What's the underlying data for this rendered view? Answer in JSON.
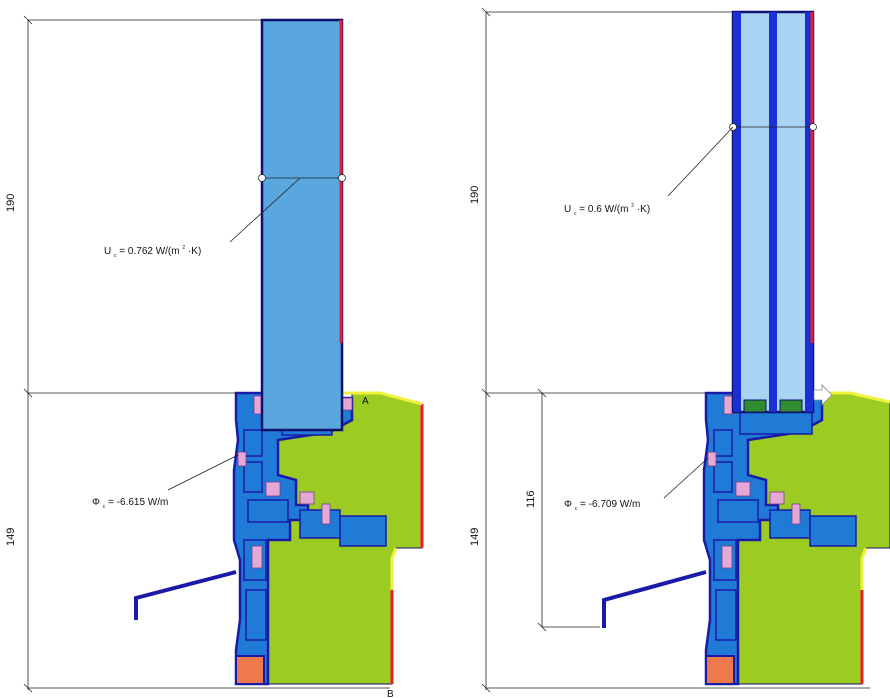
{
  "colors": {
    "glass_fill": "#5aa7df",
    "glass_pane_light": "#a9d3f2",
    "frame_blue": "#1f7bd6",
    "frame_dark": "#1a1aa8",
    "outline_navy": "#10106e",
    "timber_green": "#9ccb22",
    "seal_pink": "#e3a9d4",
    "spacer_green": "#2f8c2f",
    "block_orange": "#ee7a4c",
    "edge_red": "#e8202a",
    "edge_yellow": "#f1f03a"
  },
  "left": {
    "dim_top": "190",
    "dim_bottom": "149",
    "u_label": "U",
    "u_sub": "c",
    "u_value": "= 0.762 W/(m",
    "u_sup": "2",
    "u_tail": "·K)",
    "phi_label": "Φ",
    "phi_sub": "c",
    "phi_value": "= -6.615 W/m",
    "point_a": "A",
    "point_b": "B"
  },
  "right": {
    "dim_top": "190",
    "dim_bottom": "149",
    "dim_inner": "116",
    "u_label": "U",
    "u_sub": "c",
    "u_value": "= 0.6 W/(m",
    "u_sup": "2",
    "u_tail": "·K)",
    "phi_label": "Φ",
    "phi_sub": "c",
    "phi_value": "= -6.709 W/m"
  }
}
